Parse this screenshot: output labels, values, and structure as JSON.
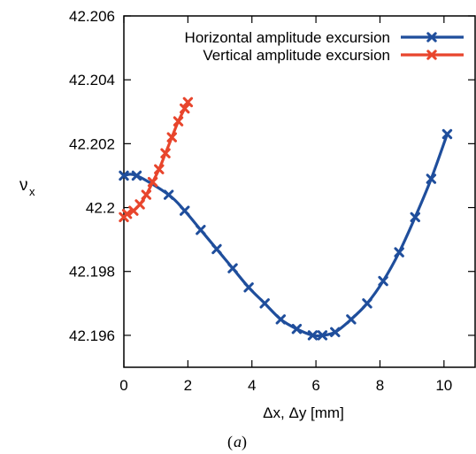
{
  "chart_data": {
    "type": "line",
    "title": "",
    "xlabel": "Δx, Δy [mm]",
    "ylabel": "νx",
    "xlim": [
      0,
      11
    ],
    "ylim": [
      42.195,
      42.206
    ],
    "grid": false,
    "legend_position": "top-right",
    "x_ticks": [
      0,
      2,
      4,
      6,
      8,
      10
    ],
    "x_tick_labels": [
      "0",
      "2",
      "4",
      "6",
      "8",
      "10"
    ],
    "y_ticks": [
      42.196,
      42.198,
      42.2,
      42.202,
      42.204,
      42.206
    ],
    "y_tick_labels": [
      "42.196",
      "42.198",
      "42.2",
      "42.202",
      "42.204",
      "42.206"
    ],
    "series": [
      {
        "name": "Horizontal amplitude excursion",
        "color": "#1f4e9c",
        "marker": "x",
        "x": [
          0,
          0.4,
          1.4,
          1.9,
          2.4,
          2.9,
          3.4,
          3.9,
          4.4,
          4.9,
          5.4,
          5.9,
          6.2,
          6.6,
          7.1,
          7.6,
          8.1,
          8.6,
          9.1,
          9.6,
          10.1
        ],
        "y": [
          42.201,
          42.201,
          42.2004,
          42.1999,
          42.1993,
          42.1987,
          42.1981,
          42.1975,
          42.197,
          42.1965,
          42.1962,
          42.196,
          42.196,
          42.1961,
          42.1965,
          42.197,
          42.1977,
          42.1986,
          42.1997,
          42.2009,
          42.2023
        ]
      },
      {
        "name": "Vertical amplitude excursion",
        "color": "#e8452c",
        "marker": "x",
        "x": [
          0,
          0.1,
          0.3,
          0.5,
          0.7,
          0.9,
          1.1,
          1.3,
          1.5,
          1.7,
          1.9,
          2.0
        ],
        "y": [
          42.1997,
          42.1998,
          42.1999,
          42.2001,
          42.2004,
          42.2008,
          42.2012,
          42.2017,
          42.2022,
          42.2027,
          42.2031,
          42.2033
        ]
      }
    ]
  },
  "caption": {
    "open": "(",
    "letter": "a",
    "close": ")"
  }
}
